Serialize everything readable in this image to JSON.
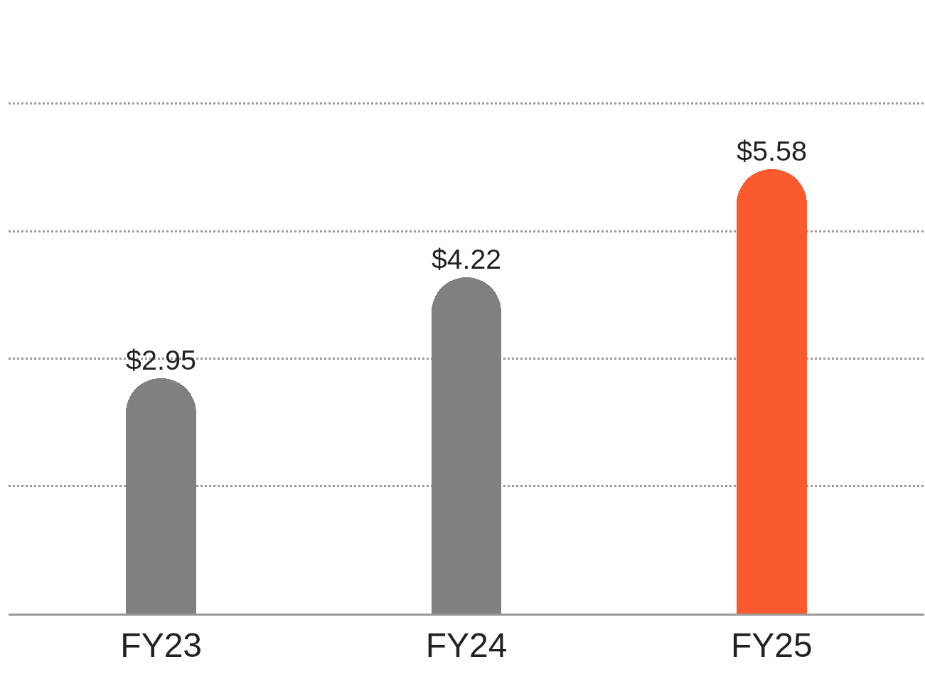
{
  "chart_data": {
    "type": "bar",
    "categories": [
      "FY23",
      "FY24",
      "FY25"
    ],
    "values": [
      2.95,
      4.22,
      5.58
    ],
    "colors": [
      "#808080",
      "#808080",
      "#fa5a2e"
    ],
    "value_labels": [
      "$2.95",
      "$4.22",
      "$5.58"
    ],
    "ylim": [
      0,
      7.7
    ],
    "yticks": [
      {
        "value": 0,
        "label": null
      },
      {
        "value": 1.6,
        "label": null
      },
      {
        "value": 3.2,
        "label": null
      },
      {
        "value": 4.8,
        "label": null
      },
      {
        "value": 6.4,
        "label": null
      }
    ],
    "grid": "y",
    "tick_labels": "x",
    "legend": false
  }
}
